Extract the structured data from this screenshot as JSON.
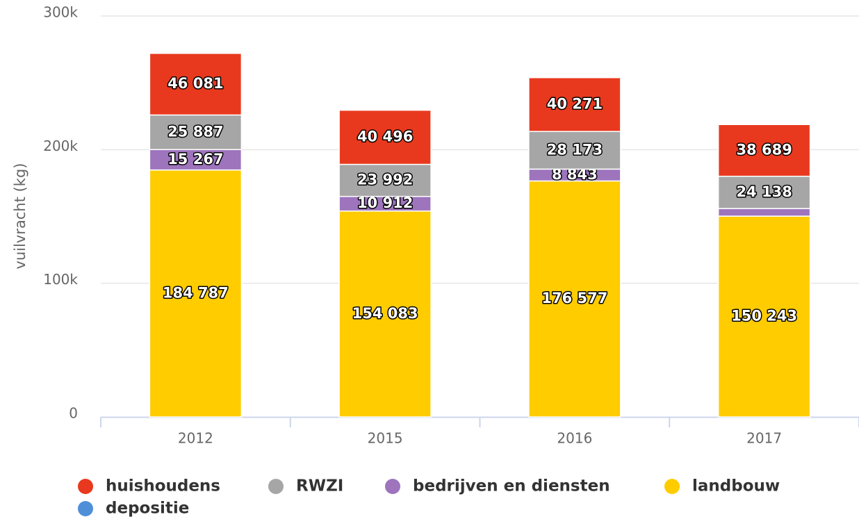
{
  "chart_data": {
    "type": "bar",
    "stacked": true,
    "y_label": "vuilvracht (kg)",
    "categories": [
      "2012",
      "2015",
      "2016",
      "2017"
    ],
    "ylim": [
      0,
      300000
    ],
    "yticks": [
      0,
      {
        "value": 100000,
        "label": "100k"
      },
      {
        "value": 200000,
        "label": "200k"
      },
      {
        "value": 300000,
        "label": "300k"
      }
    ],
    "grid": true,
    "series": [
      {
        "name": "huishoudens",
        "color": "#e8391e",
        "values": [
          46081,
          40496,
          40271,
          38689
        ],
        "value_labels": [
          "46 081",
          "40 496",
          "40 271",
          "38 689"
        ]
      },
      {
        "name": "RWZI",
        "color": "#a6a6a6",
        "values": [
          25887,
          23992,
          28173,
          24138
        ],
        "value_labels": [
          "25 887",
          "23 992",
          "28 173",
          "24 138"
        ]
      },
      {
        "name": "bedrijven en diensten",
        "color": "#9e74bd",
        "values": [
          15267,
          10912,
          8843,
          5700
        ],
        "value_labels": [
          "15 267",
          "10 912",
          "8 843",
          null
        ]
      },
      {
        "name": "landbouw",
        "color": "#ffcc00",
        "values": [
          184787,
          154083,
          176577,
          150243
        ],
        "value_labels": [
          "184 787",
          "154 083",
          "176 577",
          "150 243"
        ]
      },
      {
        "name": "depositie",
        "color": "#4e8fd8",
        "values": [
          0,
          0,
          0,
          0
        ]
      }
    ]
  }
}
